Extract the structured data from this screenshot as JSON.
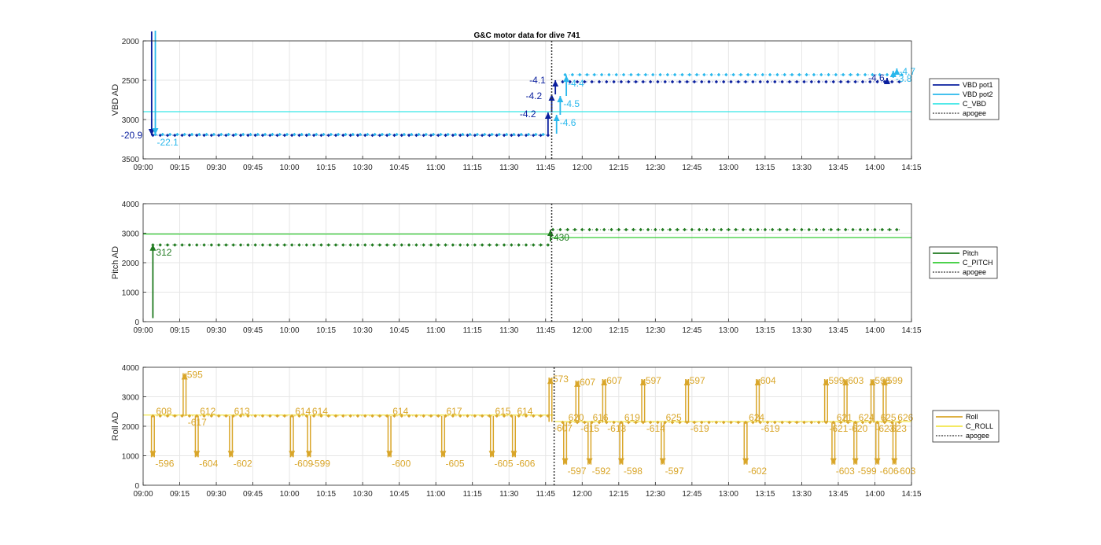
{
  "title": "G&C motor data for dive 741",
  "colors": {
    "vbd_pot1": "#0a1f9e",
    "vbd_pot2": "#2ab8ec",
    "c_vbd": "#38e6e6",
    "pitch": "#1f7a1f",
    "c_pitch": "#33cc33",
    "roll": "#d9a62a",
    "c_roll": "#f2e64d",
    "apogee": "#333333",
    "grid": "#e6e6e6"
  },
  "chart_data": [
    {
      "type": "line",
      "ylabel": "VBD AD",
      "ylim": [
        2000,
        3500
      ],
      "y_reversed": true,
      "yticks": [
        2000,
        2500,
        3000,
        3500
      ],
      "xlim_min": [
        540,
        855
      ],
      "xticks": [
        "09:00",
        "09:15",
        "09:30",
        "09:45",
        "10:00",
        "10:15",
        "10:30",
        "10:45",
        "11:00",
        "11:15",
        "11:30",
        "11:45",
        "12:00",
        "12:15",
        "12:30",
        "12:45",
        "13:00",
        "13:15",
        "13:30",
        "13:45",
        "14:00",
        "14:15"
      ],
      "legend": [
        "VBD pot1",
        "VBD pot2",
        "C_VBD",
        "apogee"
      ],
      "apogee_min": 707.5,
      "c_value": 2900,
      "series": [
        {
          "name": "VBD pot1",
          "segments": [
            {
              "x0": 544,
              "x1": 706,
              "y": 3200
            },
            {
              "x0": 712,
              "x1": 851,
              "y": 2520
            }
          ]
        },
        {
          "name": "VBD pot2",
          "segments": [
            {
              "x0": 545,
              "x1": 706,
              "y": 3190
            },
            {
              "x0": 713,
              "x1": 851,
              "y": 2430
            }
          ]
        }
      ],
      "moves": [
        {
          "s": 0,
          "x": 543.5,
          "y0": 1880,
          "y1": 3200,
          "label": "-20.9",
          "lx": -39,
          "ly": 4
        },
        {
          "s": 1,
          "x": 545,
          "y0": 1870,
          "y1": 3190,
          "label": "-22.1",
          "lx": 2,
          "ly": 14
        },
        {
          "s": 0,
          "x": 706,
          "y0": 3200,
          "y1": 2910,
          "label": "-4.2",
          "lx": -36,
          "ly": 6
        },
        {
          "s": 0,
          "x": 707.5,
          "y0": 2910,
          "y1": 2680,
          "label": "-4.2",
          "lx": -33,
          "ly": 6
        },
        {
          "s": 0,
          "x": 709,
          "y0": 2680,
          "y1": 2500,
          "label": "-4.1",
          "lx": -33,
          "ly": 4
        },
        {
          "s": 1,
          "x": 709.5,
          "y0": 3180,
          "y1": 2940,
          "label": "-4.6",
          "lx": 4,
          "ly": 14
        },
        {
          "s": 1,
          "x": 711,
          "y0": 2940,
          "y1": 2700,
          "label": "-4.5",
          "lx": 4,
          "ly": 14
        },
        {
          "s": 1,
          "x": 713.5,
          "y0": 2700,
          "y1": 2440,
          "label": "-4.4",
          "lx": 2,
          "ly": 14
        },
        {
          "s": 0,
          "x": 845,
          "y0": 2540,
          "y1": 2470,
          "label": "-4.6",
          "lx": -24,
          "ly": 4
        },
        {
          "s": 1,
          "x": 849,
          "y0": 2420,
          "y1": 2350,
          "label": "-4.7",
          "lx": 3,
          "ly": 8
        },
        {
          "s": 1,
          "x": 847.5,
          "y0": 2470,
          "y1": 2380,
          "label": "-3.8",
          "lx": 3,
          "ly": 14
        }
      ]
    },
    {
      "type": "line",
      "ylabel": "Pitch AD",
      "ylim": [
        0,
        4000
      ],
      "y_reversed": false,
      "yticks": [
        0,
        1000,
        2000,
        3000,
        4000
      ],
      "xlim_min": [
        540,
        855
      ],
      "xticks": [
        "09:00",
        "09:15",
        "09:30",
        "09:45",
        "10:00",
        "10:15",
        "10:30",
        "10:45",
        "11:00",
        "11:15",
        "11:30",
        "11:45",
        "12:00",
        "12:15",
        "12:30",
        "12:45",
        "13:00",
        "13:15",
        "13:30",
        "13:45",
        "14:00",
        "14:15"
      ],
      "legend": [
        "Pitch",
        "C_PITCH",
        "apogee"
      ],
      "apogee_min": 707.5,
      "c_values": [
        {
          "x0": 540,
          "x1": 707.5,
          "y": 2970
        },
        {
          "x0": 707.5,
          "x1": 855,
          "y": 2850
        }
      ],
      "series": [
        {
          "name": "Pitch",
          "segments": [
            {
              "x0": 544,
              "x1": 706,
              "y": 2600
            },
            {
              "x0": 708,
              "x1": 851,
              "y": 3120
            }
          ]
        }
      ],
      "moves": [
        {
          "s": 0,
          "x": 544,
          "y0": 120,
          "y1": 2620,
          "label": "312",
          "lx": 4,
          "ly": 14
        },
        {
          "s": 0,
          "x": 707,
          "y0": 2720,
          "y1": 3120,
          "label": "430",
          "lx": 4,
          "ly": 14
        }
      ]
    },
    {
      "type": "line",
      "ylabel": "Roll AD",
      "ylim": [
        0,
        4000
      ],
      "y_reversed": false,
      "yticks": [
        0,
        1000,
        2000,
        3000,
        4000
      ],
      "xlim_min": [
        540,
        855
      ],
      "xticks": [
        "09:00",
        "09:15",
        "09:30",
        "09:45",
        "10:00",
        "10:15",
        "10:30",
        "10:45",
        "11:00",
        "11:15",
        "11:30",
        "11:45",
        "12:00",
        "12:15",
        "12:30",
        "12:45",
        "13:00",
        "13:15",
        "13:30",
        "13:45",
        "14:00",
        "14:15"
      ],
      "legend": [
        "Roll",
        "C_ROLL",
        "apogee"
      ],
      "apogee_min": 708.5,
      "c_values": [
        {
          "x0": 540,
          "x1": 708.5,
          "y": 2380
        },
        {
          "x0": 708.5,
          "x1": 855,
          "y": 2160
        }
      ],
      "series": [
        {
          "name": "Roll",
          "segments": [
            {
              "x0": 544,
              "x1": 706,
              "y": 2350
            },
            {
              "x0": 712,
              "x1": 851,
              "y": 2130
            }
          ]
        }
      ],
      "moves": [
        {
          "x": 544,
          "dir": "down",
          "down": "-596",
          "up": "608",
          "low": 950,
          "high": 2350
        },
        {
          "x": 557,
          "dir": "up",
          "up": "595",
          "down": "-617",
          "low": 2350,
          "high": 3800
        },
        {
          "x": 562,
          "dir": "down",
          "down": "-604",
          "up": "612",
          "low": 950,
          "high": 2350
        },
        {
          "x": 576,
          "dir": "down",
          "down": "-602",
          "up": "613",
          "low": 950,
          "high": 2350
        },
        {
          "x": 601,
          "dir": "down",
          "down": "-609",
          "up": "614",
          "low": 950,
          "high": 2350
        },
        {
          "x": 608,
          "dir": "down",
          "down": "-599",
          "up": "614",
          "low": 950,
          "high": 2350
        },
        {
          "x": 641,
          "dir": "down",
          "down": "-600",
          "up": "614",
          "low": 950,
          "high": 2350
        },
        {
          "x": 663,
          "dir": "down",
          "down": "-605",
          "up": "617",
          "low": 950,
          "high": 2350
        },
        {
          "x": 683,
          "dir": "down",
          "down": "-605",
          "up": "615",
          "low": 950,
          "high": 2350
        },
        {
          "x": 692,
          "dir": "down",
          "down": "-606",
          "up": "614",
          "low": 950,
          "high": 2350
        },
        {
          "x": 707,
          "dir": "up",
          "up": "573",
          "down": "-607",
          "low": 2150,
          "high": 3650
        },
        {
          "x": 713,
          "dir": "down",
          "down": "-597",
          "up": "620",
          "low": 700,
          "high": 2130
        },
        {
          "x": 718,
          "dir": "up",
          "up": "607",
          "down": "-615",
          "low": 2130,
          "high": 3550
        },
        {
          "x": 723,
          "dir": "down",
          "down": "-592",
          "up": "616",
          "low": 700,
          "high": 2130
        },
        {
          "x": 729,
          "dir": "up",
          "up": "607",
          "down": "-613",
          "low": 2130,
          "high": 3600
        },
        {
          "x": 736,
          "dir": "down",
          "down": "-598",
          "up": "619",
          "low": 700,
          "high": 2130
        },
        {
          "x": 745,
          "dir": "up",
          "up": "597",
          "down": "-614",
          "low": 2130,
          "high": 3600
        },
        {
          "x": 753,
          "dir": "down",
          "down": "-597",
          "up": "625",
          "low": 700,
          "high": 2130
        },
        {
          "x": 763,
          "dir": "up",
          "up": "597",
          "down": "-619",
          "low": 2130,
          "high": 3600
        },
        {
          "x": 787,
          "dir": "down",
          "down": "-602",
          "up": "624",
          "low": 700,
          "high": 2130
        },
        {
          "x": 792,
          "dir": "up",
          "up": "604",
          "down": "-619",
          "low": 2130,
          "high": 3600
        },
        {
          "x": 820,
          "dir": "up",
          "up": "599",
          "down": "-621",
          "low": 2130,
          "high": 3600
        },
        {
          "x": 823,
          "dir": "down",
          "down": "-603",
          "up": "621",
          "low": 700,
          "high": 2130
        },
        {
          "x": 828,
          "dir": "up",
          "up": "603",
          "down": "-620",
          "low": 2130,
          "high": 3600
        },
        {
          "x": 832,
          "dir": "down",
          "down": "-599",
          "up": "624",
          "low": 700,
          "high": 2130
        },
        {
          "x": 839,
          "dir": "up",
          "up": "598",
          "down": "-623",
          "low": 2130,
          "high": 3600
        },
        {
          "x": 841,
          "dir": "down",
          "down": "-606",
          "up": "625",
          "low": 700,
          "high": 2130
        },
        {
          "x": 844,
          "dir": "up",
          "up": "599",
          "down": "-623",
          "low": 2130,
          "high": 3600
        },
        {
          "x": 848,
          "dir": "down",
          "down": "-603",
          "up": "626",
          "low": 700,
          "high": 2130
        }
      ]
    }
  ]
}
